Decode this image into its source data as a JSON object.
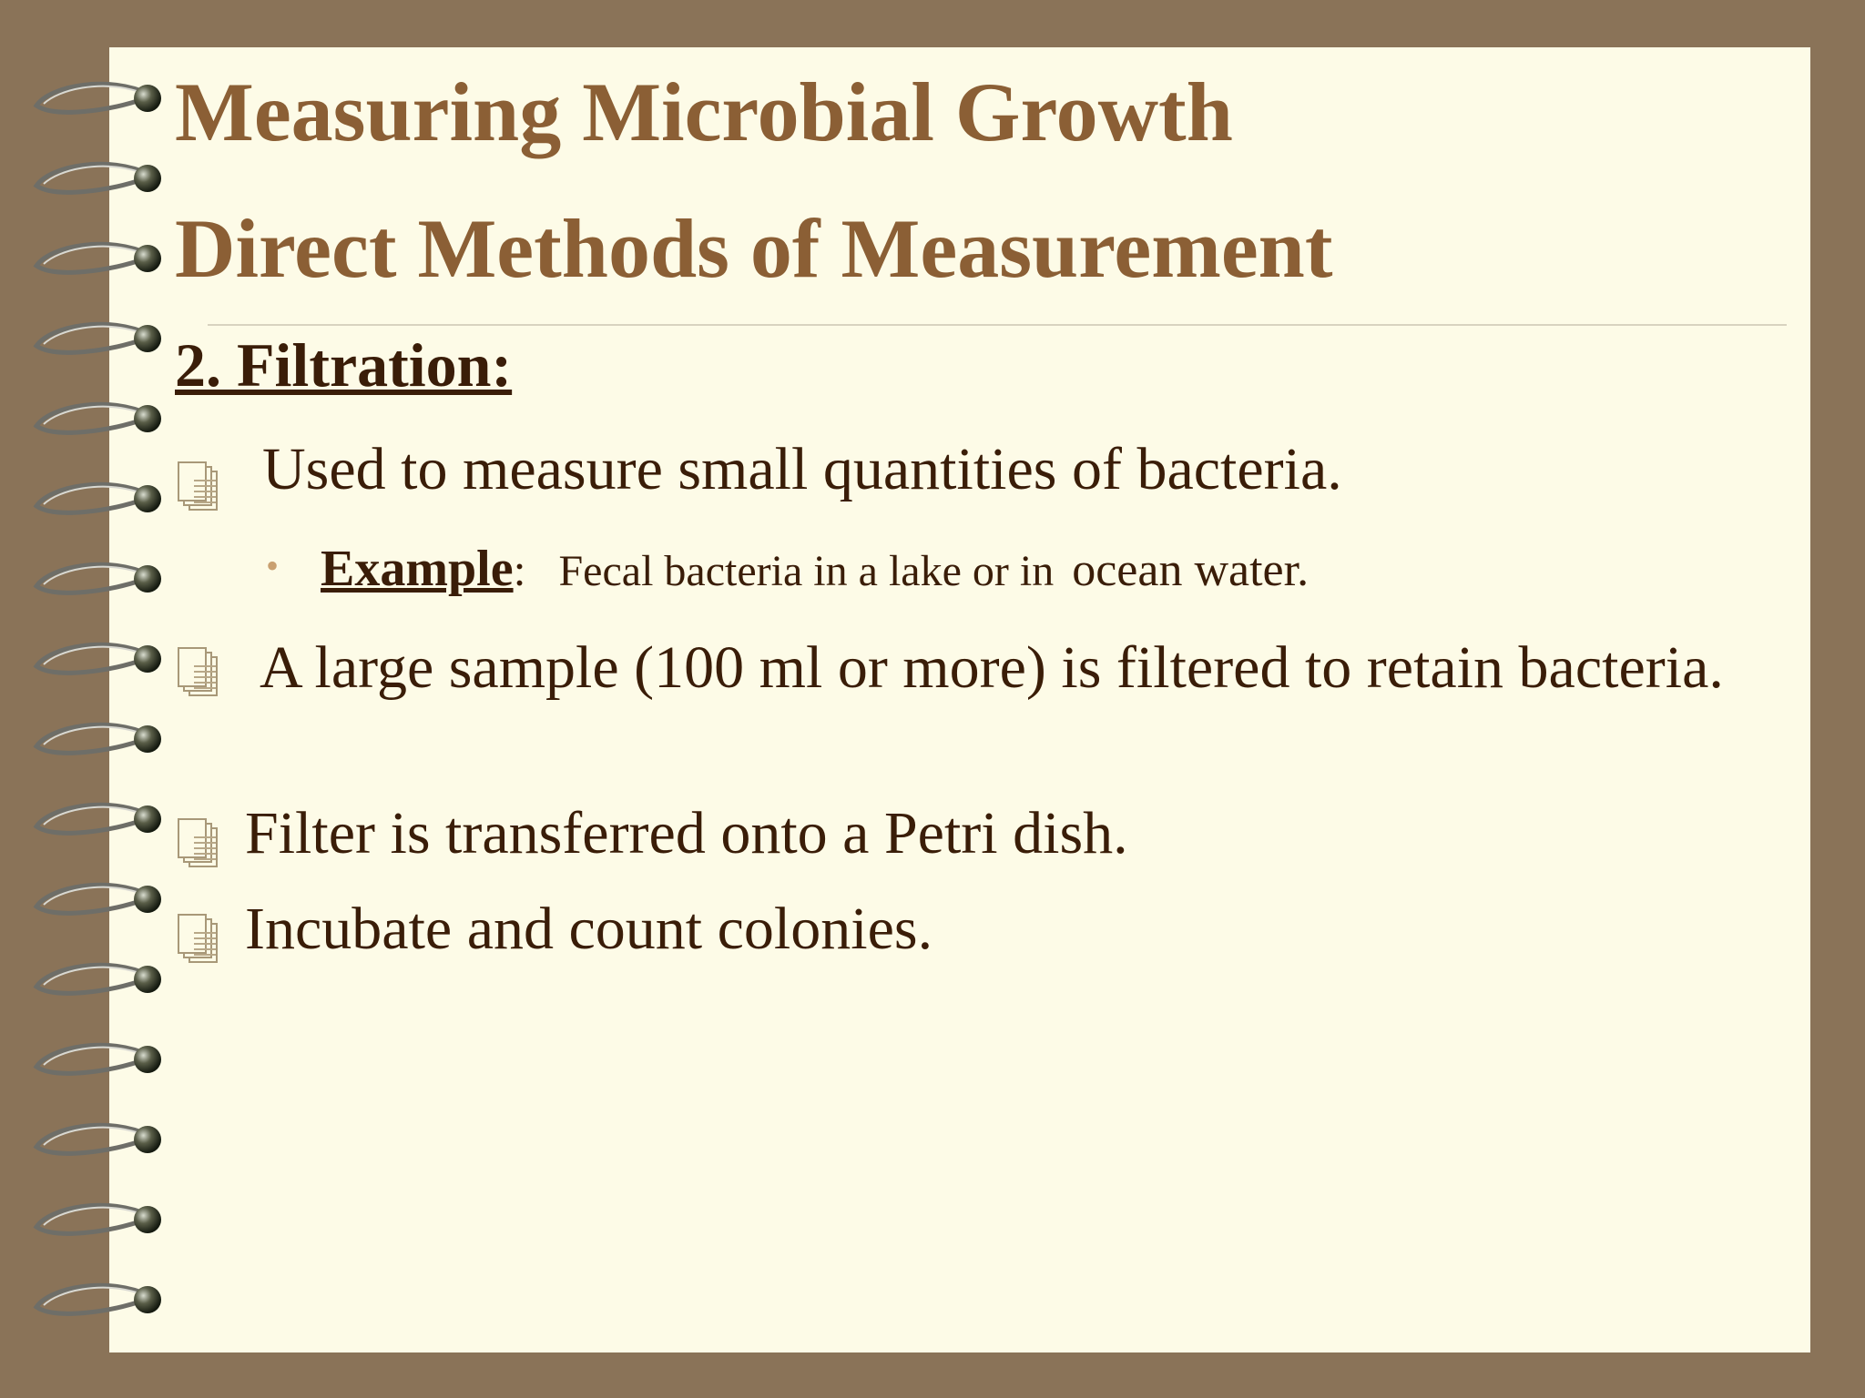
{
  "slide": {
    "title": "Measuring Microbial Growth",
    "subtitle": "Direct Methods of Measurement",
    "heading": "2. Filtration:",
    "bullets": [
      {
        "text": "Used to measure small quantities of bacteria.",
        "sub": {
          "label": "Example",
          "separator": ":",
          "text": "Fecal bacteria in a lake or in",
          "text_small": "ocean water."
        }
      },
      {
        "text": "A large sample (100 ml or more) is filtered to retain bacteria."
      },
      {
        "text": "Filter is transferred onto a Petri dish."
      },
      {
        "text": "Incubate and count colonies."
      }
    ]
  }
}
